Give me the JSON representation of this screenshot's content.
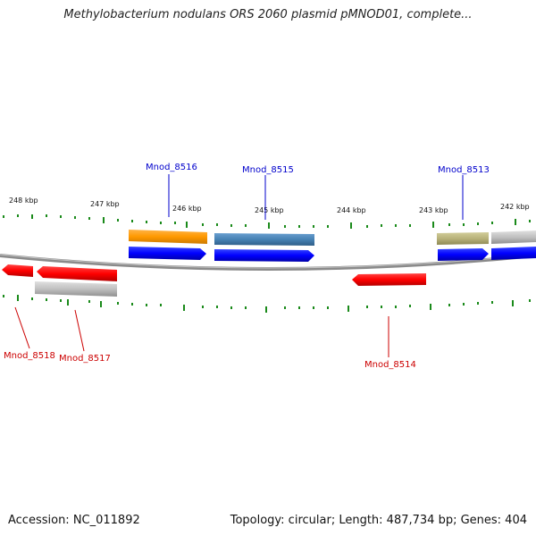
{
  "title": "Methylobacterium nodulans ORS 2060 plasmid pMNOD01, complete...",
  "footer": {
    "accession": "Accession: NC_011892",
    "stats": "Topology: circular; Length: 487,734 bp; Genes: 404"
  },
  "colors": {
    "tick": "#1a8a1a",
    "backbone": "#888888",
    "forward_label": "#0000cc",
    "reverse_label": "#cc0000",
    "cds_forward": "#0000ff",
    "cds_reverse": "#ff0000",
    "feature_orange": "#ff9900",
    "feature_steel": "#4682b4",
    "feature_khaki": "#b8b27a",
    "feature_gray": "#c0c0c0"
  },
  "map": {
    "kbp_labels": [
      "248 kbp",
      "247 kbp",
      "246 kbp",
      "245 kbp",
      "244 kbp",
      "243 kbp",
      "242 kbp"
    ],
    "gene_labels": [
      "Mnod_8516",
      "Mnod_8515",
      "Mnod_8513",
      "Mnod_8518",
      "Mnod_8517",
      "Mnod_8514"
    ]
  }
}
